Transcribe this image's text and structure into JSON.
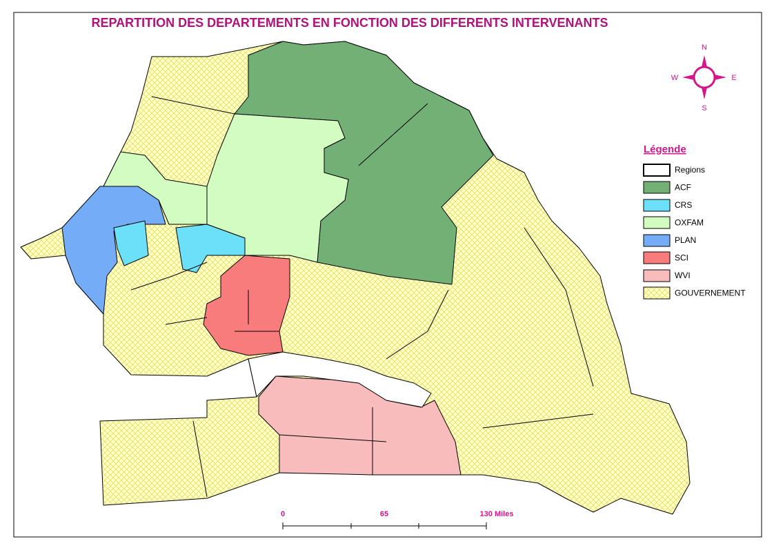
{
  "title": "REPARTITION DES DEPARTEMENTS EN FONCTION DES DIFFERENTS INTERVENANTS",
  "compass": {
    "north": "N",
    "east": "E",
    "south": "S",
    "west": "W"
  },
  "legend": {
    "title": "Légende",
    "items": [
      "Regions",
      "ACF",
      "CRS",
      "OXFAM",
      "PLAN",
      "SCI",
      "WVI",
      "GOUVERNEMENT"
    ]
  },
  "scale_bar": {
    "labels": [
      "0",
      "65",
      "130 Miles"
    ]
  }
}
